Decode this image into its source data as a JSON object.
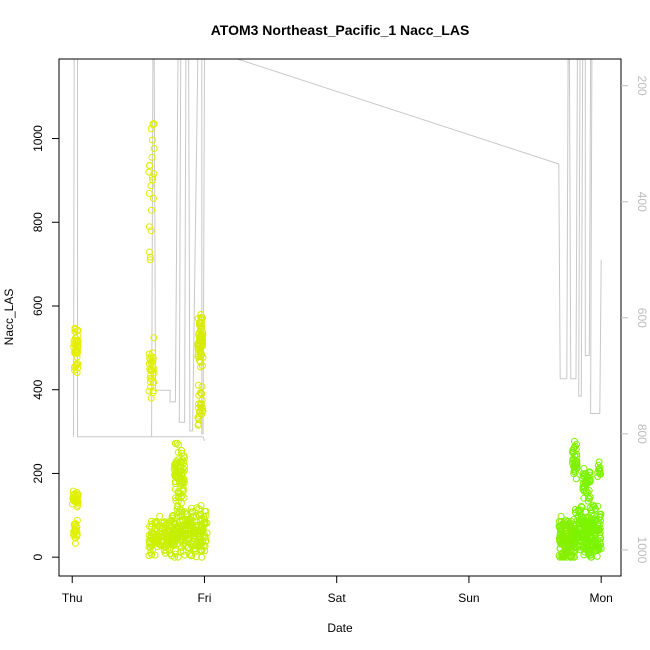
{
  "chart_data": {
    "type": "scatter",
    "title": "ATOM3 Northeast_Pacific_1 Nacc_LAS",
    "xlabel": "Date",
    "ylabel": "Nacc_LAS",
    "x_ticks": [
      {
        "x": 0,
        "label": "Thu"
      },
      {
        "x": 1,
        "label": "Fri"
      },
      {
        "x": 2,
        "label": "Sat"
      },
      {
        "x": 3,
        "label": "Sun"
      },
      {
        "x": 4,
        "label": "Mon"
      }
    ],
    "y_ticks": [
      0,
      200,
      400,
      600,
      800,
      1000
    ],
    "y2_ticks": [
      200,
      400,
      600,
      800,
      1000
    ],
    "xlim": [
      -0.1,
      4.15
    ],
    "ylim": [
      -45,
      1190
    ],
    "y2lim": [
      1045,
      154
    ],
    "colors": {
      "axes": "#000000",
      "secondary_axis": "#bdbdbd",
      "line": "#c8c8c8",
      "points_early": "#d4f000",
      "points_late": "#7cfc00"
    },
    "series": [
      {
        "kind": "points",
        "clusters": [
          {
            "x_range": [
              0.0,
              0.045
            ],
            "y_center": 140,
            "y_spread": 30,
            "n": 36,
            "color": "#e0f000"
          },
          {
            "x_range": [
              0.01,
              0.045
            ],
            "y_center": 60,
            "y_spread": 35,
            "n": 25,
            "color": "#e0f000"
          },
          {
            "x_range": [
              0.01,
              0.045
            ],
            "y_center": 500,
            "y_spread": 70,
            "n": 40,
            "color": "#e6ee00"
          },
          {
            "x_range": [
              0.58,
              0.62
            ],
            "y_center": 900,
            "y_spread": 240,
            "n": 22,
            "color": "#e0f000"
          },
          {
            "x_range": [
              0.58,
              0.62
            ],
            "y_center": 450,
            "y_spread": 80,
            "n": 28,
            "color": "#e0f000"
          },
          {
            "x_range": [
              0.58,
              0.75
            ],
            "y_center": 50,
            "y_spread": 50,
            "n": 120,
            "color": "#ccf000"
          },
          {
            "x_range": [
              0.75,
              1.02
            ],
            "y_center": 60,
            "y_spread": 70,
            "n": 220,
            "color": "#c4f000"
          },
          {
            "x_range": [
              0.77,
              0.85
            ],
            "y_center": 200,
            "y_spread": 90,
            "n": 80,
            "color": "#c8f000"
          },
          {
            "x_range": [
              0.95,
              0.99
            ],
            "y_center": 520,
            "y_spread": 70,
            "n": 60,
            "color": "#d8ec00"
          },
          {
            "x_range": [
              0.95,
              0.99
            ],
            "y_center": 360,
            "y_spread": 60,
            "n": 25,
            "color": "#d8ec00"
          },
          {
            "x_range": [
              3.68,
              3.8
            ],
            "y_center": 40,
            "y_spread": 60,
            "n": 160,
            "color": "#86f000"
          },
          {
            "x_range": [
              3.78,
              3.82
            ],
            "y_center": 230,
            "y_spread": 55,
            "n": 35,
            "color": "#80f000"
          },
          {
            "x_range": [
              3.8,
              4.0
            ],
            "y_center": 60,
            "y_spread": 70,
            "n": 220,
            "color": "#7cf400"
          },
          {
            "x_range": [
              3.86,
              3.92
            ],
            "y_center": 170,
            "y_spread": 50,
            "n": 40,
            "color": "#7cf400"
          },
          {
            "x_range": [
              3.97,
              4.0
            ],
            "y_center": 210,
            "y_spread": 20,
            "n": 12,
            "color": "#7cf400"
          }
        ]
      },
      {
        "kind": "altitude-line",
        "points": [
          [
            0.01,
            805
          ],
          [
            0.015,
            154
          ],
          [
            0.04,
            154
          ],
          [
            0.04,
            805
          ],
          [
            0.99,
            805
          ],
          [
            1.0,
            812
          ],
          [
            0.99,
            805
          ],
          [
            0.6,
            805
          ],
          [
            0.61,
            154
          ],
          [
            0.62,
            154
          ],
          [
            0.63,
            725
          ],
          [
            0.74,
            725
          ],
          [
            0.74,
            745
          ],
          [
            0.78,
            745
          ],
          [
            0.8,
            154
          ],
          [
            0.82,
            154
          ],
          [
            0.81,
            780
          ],
          [
            0.85,
            780
          ],
          [
            0.86,
            154
          ],
          [
            0.88,
            154
          ],
          [
            0.89,
            795
          ],
          [
            0.91,
            795
          ],
          [
            0.95,
            154
          ],
          [
            0.96,
            154
          ],
          [
            0.97,
            154
          ],
          [
            0.98,
            154
          ],
          [
            0.98,
            800
          ],
          [
            0.99,
            800
          ],
          [
            1.0,
            154
          ],
          [
            1.02,
            154
          ],
          [
            1.15,
            154
          ],
          [
            1.2,
            154
          ],
          [
            1.25,
            154
          ],
          [
            3.68,
            335
          ],
          [
            3.69,
            705
          ],
          [
            3.74,
            705
          ],
          [
            3.75,
            154
          ],
          [
            3.76,
            154
          ],
          [
            3.77,
            705
          ],
          [
            3.81,
            705
          ],
          [
            3.82,
            154
          ],
          [
            3.84,
            154
          ],
          [
            3.83,
            735
          ],
          [
            3.85,
            735
          ],
          [
            3.86,
            154
          ],
          [
            3.88,
            154
          ],
          [
            3.88,
            665
          ],
          [
            3.91,
            665
          ],
          [
            3.92,
            154
          ],
          [
            3.93,
            154
          ],
          [
            3.92,
            765
          ],
          [
            3.99,
            765
          ],
          [
            4.0,
            500
          ]
        ]
      }
    ]
  }
}
